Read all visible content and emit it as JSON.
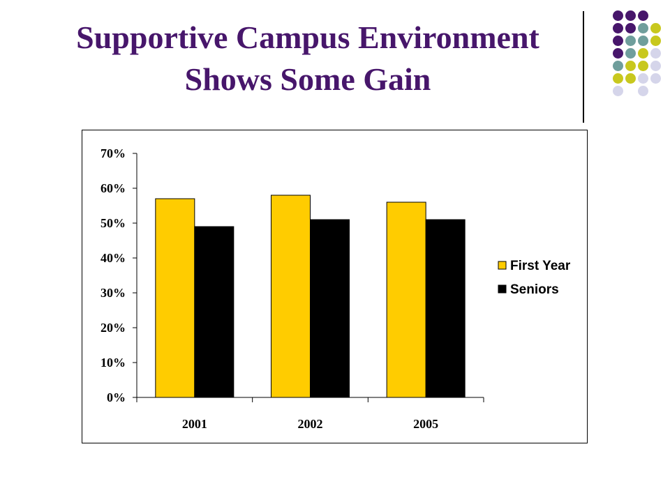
{
  "slide": {
    "title_line1": "Supportive Campus Environment",
    "title_line2": "Shows Some Gain",
    "title_color": "#47166b"
  },
  "decoration": {
    "dot_colors": {
      "purple": "#47166b",
      "teal": "#6f9e9c",
      "olive": "#c8c81e",
      "lavender": "#d5d5ea"
    }
  },
  "chart_data": {
    "type": "bar",
    "categories": [
      "2001",
      "2002",
      "2005"
    ],
    "series": [
      {
        "name": "First Year",
        "values": [
          57,
          58,
          56
        ],
        "color": "#ffcc00"
      },
      {
        "name": "Seniors",
        "values": [
          49,
          51,
          51
        ],
        "color": "#000000"
      }
    ],
    "title": "",
    "xlabel": "",
    "ylabel": "",
    "ylim": [
      0,
      70
    ],
    "yticks": [
      "0%",
      "10%",
      "20%",
      "30%",
      "40%",
      "50%",
      "60%",
      "70%"
    ],
    "grid": false,
    "legend_position": "right"
  }
}
